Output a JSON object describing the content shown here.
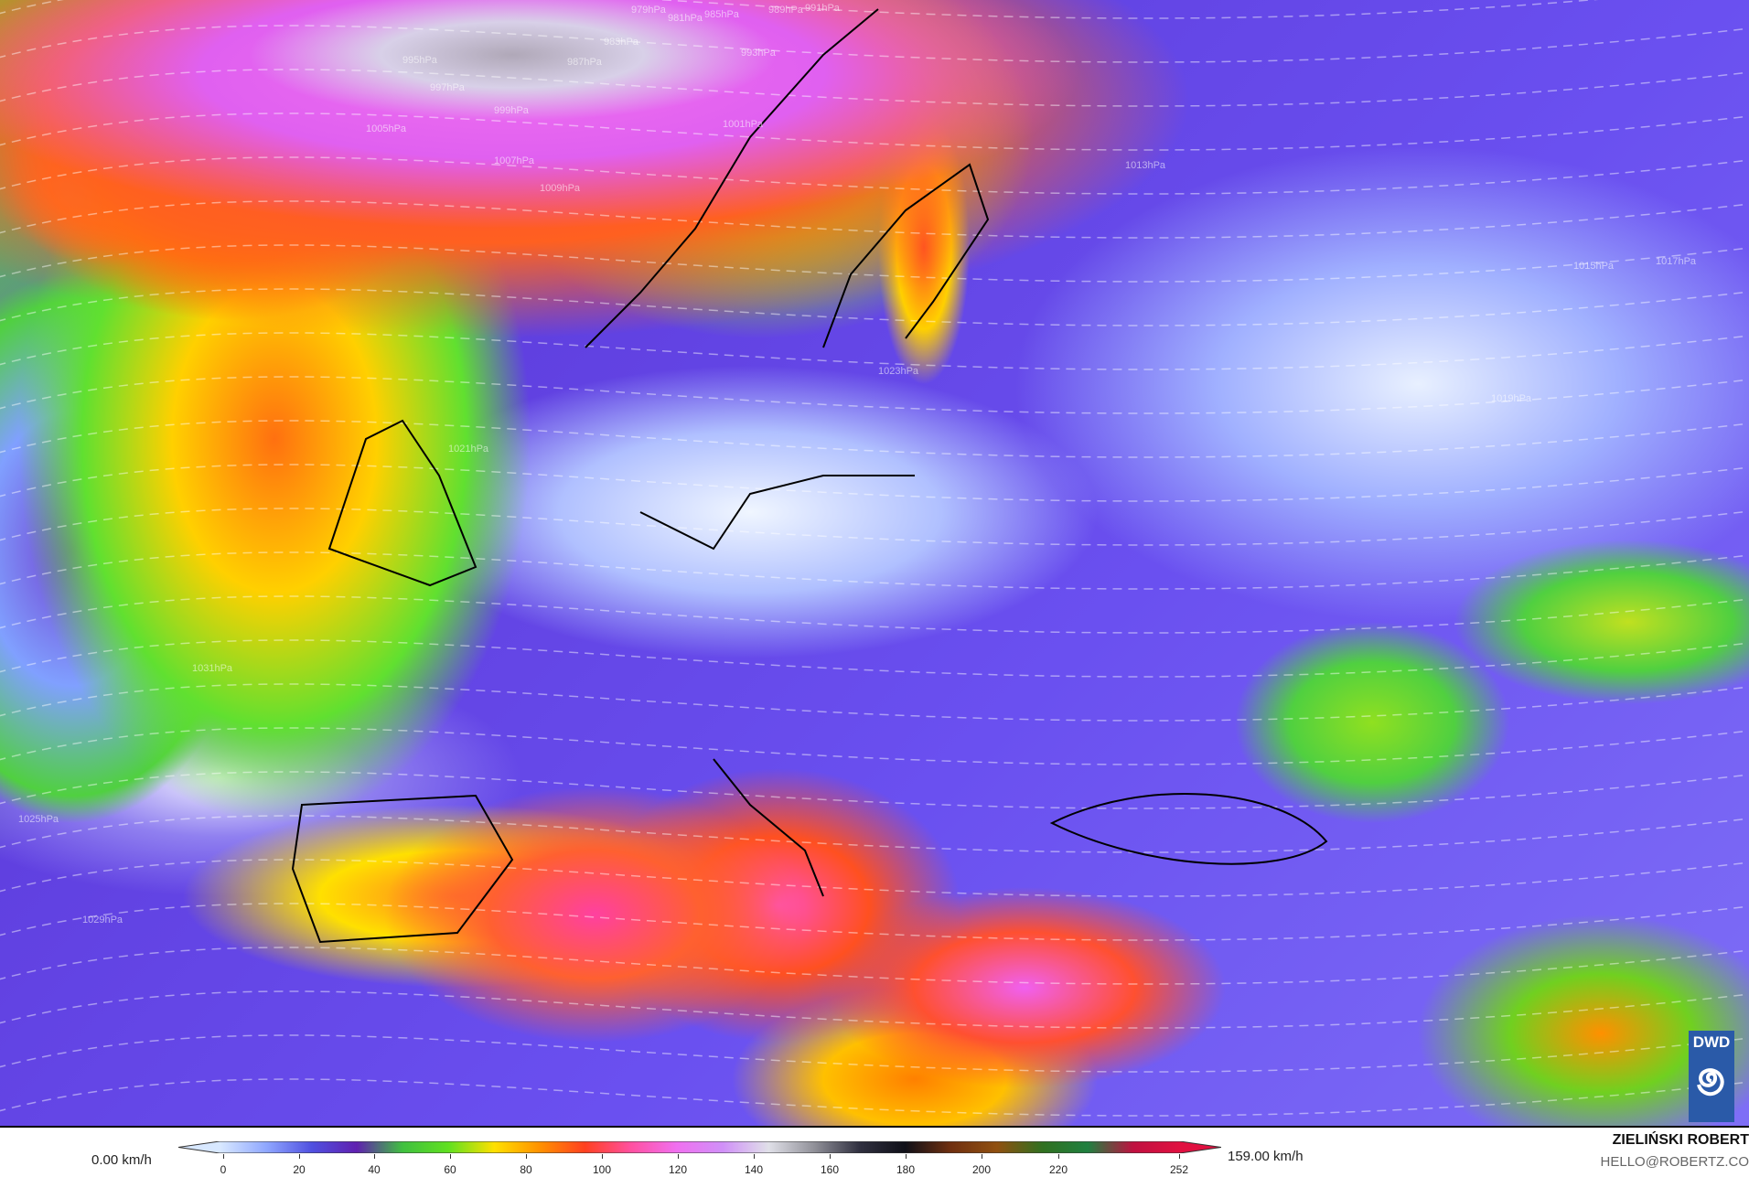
{
  "map": {
    "isobar_labels": [
      "979hPa",
      "981hPa",
      "985hPa",
      "989hPa",
      "991hPa",
      "995hPa",
      "983hPa",
      "987hPa",
      "993hPa",
      "997hPa",
      "999hPa",
      "1001hPa",
      "1005hPa",
      "1007hPa",
      "1009hPa",
      "1013hPa",
      "1015hPa",
      "1017hPa",
      "1019hPa",
      "1021hPa",
      "1023hPa",
      "1025hPa",
      "1029hPa",
      "1031hPa"
    ],
    "logo": "DWD"
  },
  "legend": {
    "min_label": "0.00 km/h",
    "max_label": "159.00 km/h",
    "ticks": [
      "0",
      "20",
      "40",
      "60",
      "80",
      "100",
      "120",
      "140",
      "160",
      "180",
      "200",
      "220",
      "252"
    ],
    "colors": [
      "#d8e8ff",
      "#90a8ff",
      "#5050e0",
      "#6020b0",
      "#40c040",
      "#60e020",
      "#ffe000",
      "#ff9000",
      "#ff4020",
      "#ff50a0",
      "#f070f0",
      "#d090f8",
      "#e0e0e8",
      "#909098",
      "#303040",
      "#101018",
      "#703010",
      "#905010",
      "#307020",
      "#208040",
      "#c01040",
      "#e01040"
    ]
  },
  "credits": {
    "author": "ZIELIŃSKI ROBERT",
    "email": "HELLO@ROBERTZ.CO"
  }
}
